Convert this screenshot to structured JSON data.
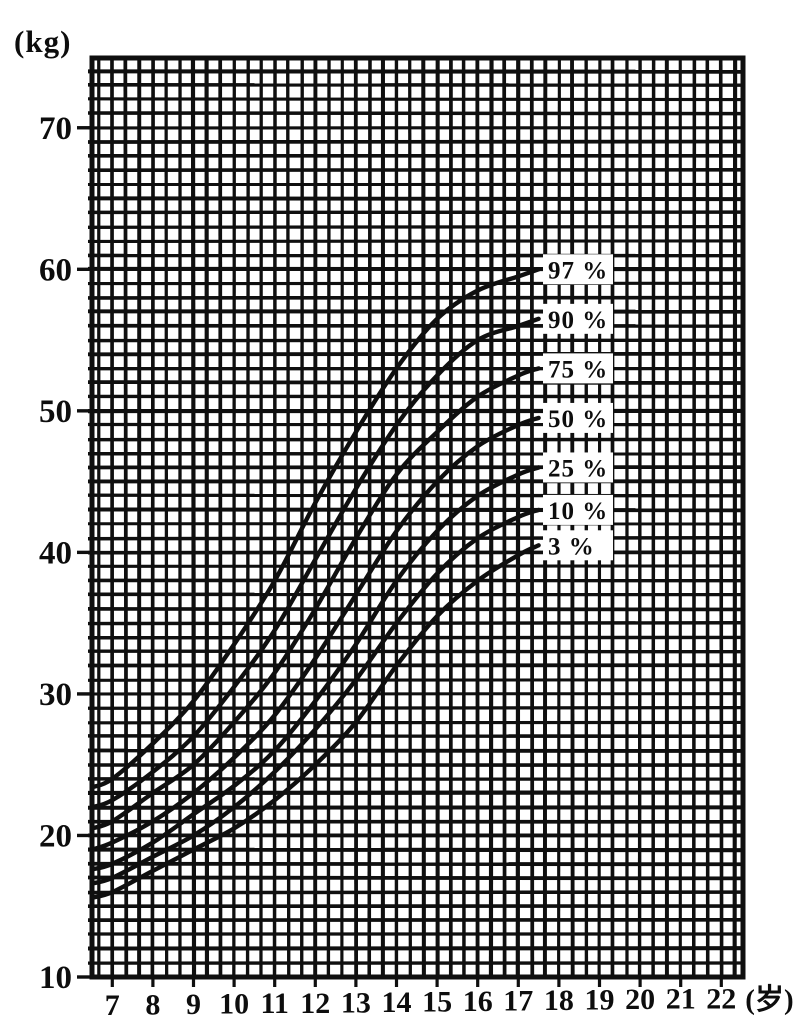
{
  "page": {
    "background": "#ffffff",
    "ink": "#0f0f0f"
  },
  "chart_data": {
    "type": "line",
    "title": "",
    "description": "Weight-for-age percentile growth curves (scanned chart)",
    "ylabel": "(kg)",
    "xlabel": "(岁)",
    "xlim": [
      6.5,
      22.5
    ],
    "ylim": [
      10,
      75
    ],
    "grid": true,
    "minor_x_per_year": 3,
    "minor_y_per_kg": 1,
    "x_ticks": [
      7,
      8,
      9,
      10,
      11,
      12,
      13,
      14,
      15,
      16,
      17,
      18,
      19,
      20,
      21,
      22
    ],
    "y_ticks": [
      70,
      60,
      50,
      40,
      30,
      20,
      10
    ],
    "legend_position": "labels-at-curve-end",
    "x": [
      6.5,
      7,
      8,
      9,
      10,
      11,
      12,
      13,
      14,
      15,
      16,
      17,
      17.5
    ],
    "series": [
      {
        "name": "97 %",
        "values": [
          23.4,
          24.0,
          26.5,
          29.5,
          33.5,
          38.0,
          43.5,
          48.5,
          53.0,
          56.5,
          58.5,
          59.5,
          60.0
        ]
      },
      {
        "name": "90 %",
        "values": [
          22.0,
          22.5,
          24.5,
          27.0,
          30.5,
          34.5,
          39.5,
          44.5,
          49.0,
          52.5,
          55.0,
          56.0,
          56.5
        ]
      },
      {
        "name": "75 %",
        "values": [
          20.5,
          21.0,
          23.0,
          25.0,
          28.0,
          31.5,
          36.0,
          41.0,
          45.5,
          48.5,
          51.0,
          52.5,
          53.0
        ]
      },
      {
        "name": "50 %",
        "values": [
          19.0,
          19.5,
          21.0,
          23.0,
          25.5,
          28.5,
          32.5,
          37.0,
          41.5,
          45.0,
          47.5,
          49.0,
          49.5
        ]
      },
      {
        "name": "25 %",
        "values": [
          17.6,
          18.0,
          19.5,
          21.5,
          23.5,
          26.0,
          29.5,
          33.5,
          38.0,
          41.5,
          44.0,
          45.5,
          46.0
        ]
      },
      {
        "name": "10 %",
        "values": [
          16.6,
          17.0,
          18.5,
          20.0,
          22.0,
          24.5,
          27.5,
          31.0,
          35.0,
          38.5,
          41.0,
          42.5,
          43.0
        ]
      },
      {
        "name": "3 %",
        "values": [
          15.6,
          16.0,
          17.5,
          19.0,
          20.5,
          22.5,
          25.0,
          28.0,
          32.0,
          35.5,
          38.0,
          39.8,
          40.5
        ]
      }
    ]
  }
}
